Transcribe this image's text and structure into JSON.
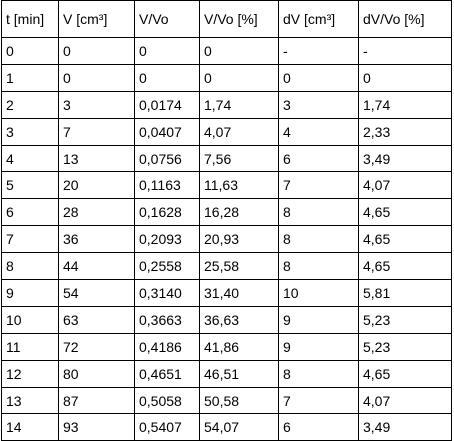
{
  "table": {
    "header": [
      "t [min]",
      "V [cm³]",
      "V/Vo",
      "V/Vo [%]",
      "dV [cm³]",
      "dV/Vo [%]"
    ],
    "rows": [
      [
        "0",
        "0",
        "0",
        "0",
        "-",
        "-"
      ],
      [
        "1",
        "0",
        "0",
        "0",
        "0",
        "0"
      ],
      [
        "2",
        "3",
        "0,0174",
        "1,74",
        "3",
        "1,74"
      ],
      [
        "3",
        "7",
        "0,0407",
        "4,07",
        "4",
        "2,33"
      ],
      [
        "4",
        "13",
        "0,0756",
        "7,56",
        "6",
        "3,49"
      ],
      [
        "5",
        "20",
        "0,1163",
        "11,63",
        "7",
        "4,07"
      ],
      [
        "6",
        "28",
        "0,1628",
        "16,28",
        "8",
        "4,65"
      ],
      [
        "7",
        "36",
        "0,2093",
        "20,93",
        "8",
        "4,65"
      ],
      [
        "8",
        "44",
        "0,2558",
        "25,58",
        "8",
        "4,65"
      ],
      [
        "9",
        "54",
        "0,3140",
        "31,40",
        "10",
        "5,81"
      ],
      [
        "10",
        "63",
        "0,3663",
        "36,63",
        "9",
        "5,23"
      ],
      [
        "11",
        "72",
        "0,4186",
        "41,86",
        "9",
        "5,23"
      ],
      [
        "12",
        "80",
        "0,4651",
        "46,51",
        "8",
        "4,65"
      ],
      [
        "13",
        "87",
        "0,5058",
        "50,58",
        "7",
        "4,07"
      ],
      [
        "14",
        "93",
        "0,5407",
        "54,07",
        "6",
        "3,49"
      ]
    ]
  }
}
